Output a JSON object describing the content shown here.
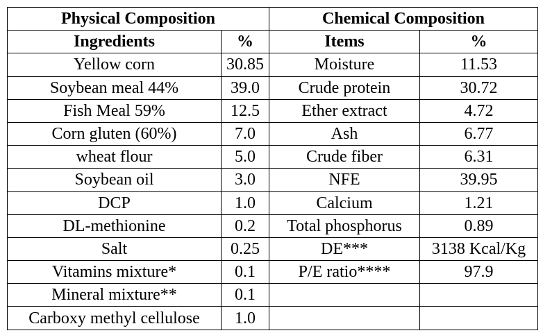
{
  "table": {
    "group_headers": {
      "physical": "Physical Composition",
      "chemical": "Chemical Composition"
    },
    "column_headers": {
      "ingredients": "Ingredients",
      "ingredients_pct": "%",
      "items": "Items",
      "items_pct": "%"
    },
    "rows": [
      {
        "ingredient": "Yellow corn",
        "ingredient_pct": "30.85",
        "item": "Moisture",
        "item_pct": "11.53"
      },
      {
        "ingredient": "Soybean meal 44%",
        "ingredient_pct": "39.0",
        "item": "Crude protein",
        "item_pct": "30.72"
      },
      {
        "ingredient": "Fish Meal 59%",
        "ingredient_pct": "12.5",
        "item": "Ether extract",
        "item_pct": "4.72"
      },
      {
        "ingredient": "Corn gluten (60%)",
        "ingredient_pct": "7.0",
        "item": "Ash",
        "item_pct": "6.77"
      },
      {
        "ingredient": "wheat flour",
        "ingredient_pct": "5.0",
        "item": "Crude fiber",
        "item_pct": "6.31"
      },
      {
        "ingredient": "Soybean oil",
        "ingredient_pct": "3.0",
        "item": "NFE",
        "item_pct": "39.95"
      },
      {
        "ingredient": "DCP",
        "ingredient_pct": "1.0",
        "item": "Calcium",
        "item_pct": "1.21"
      },
      {
        "ingredient": "DL-methionine",
        "ingredient_pct": "0.2",
        "item": "Total phosphorus",
        "item_pct": "0.89"
      },
      {
        "ingredient": "Salt",
        "ingredient_pct": "0.25",
        "item": "DE***",
        "item_pct": "3138 Kcal/Kg"
      },
      {
        "ingredient": "Vitamins mixture*",
        "ingredient_pct": "0.1",
        "item": "P/E ratio****",
        "item_pct": "97.9"
      },
      {
        "ingredient": "Mineral mixture**",
        "ingredient_pct": "0.1",
        "item": "",
        "item_pct": ""
      },
      {
        "ingredient": "Carboxy methyl cellulose",
        "ingredient_pct": "1.0",
        "item": "",
        "item_pct": ""
      }
    ]
  }
}
